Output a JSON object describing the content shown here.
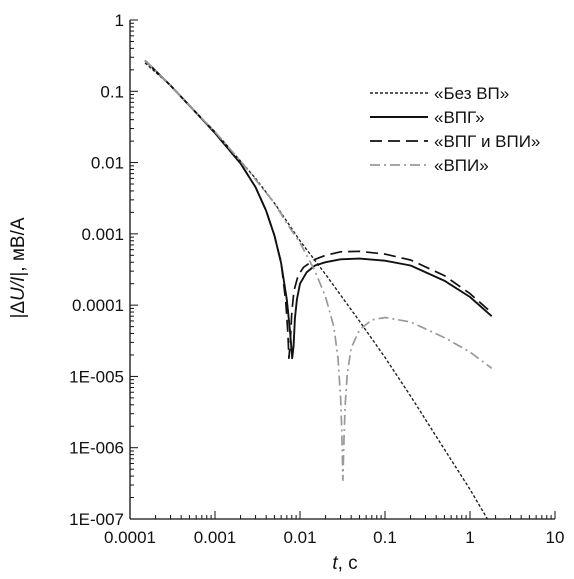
{
  "chart_data": {
    "type": "line",
    "xscale": "log",
    "yscale": "log",
    "xlim": [
      0.0001,
      10
    ],
    "ylim": [
      1e-07,
      1
    ],
    "xlabel_italic": "t",
    "xlabel_rest": ", с",
    "ylabel_left": "|Δ",
    "ylabel_italic": "U/I",
    "ylabel_right": "|, мВ/А",
    "x_ticks": [
      {
        "value": 0.0001,
        "label": "0.0001"
      },
      {
        "value": 0.001,
        "label": "0.001"
      },
      {
        "value": 0.01,
        "label": "0.01"
      },
      {
        "value": 0.1,
        "label": "0.1"
      },
      {
        "value": 1,
        "label": "1"
      },
      {
        "value": 10,
        "label": "10"
      }
    ],
    "y_ticks": [
      {
        "value": 1,
        "label": "1"
      },
      {
        "value": 0.1,
        "label": "0.1"
      },
      {
        "value": 0.01,
        "label": "0.01"
      },
      {
        "value": 0.001,
        "label": "0.001"
      },
      {
        "value": 0.0001,
        "label": "0.0001"
      },
      {
        "value": 1e-05,
        "label": "1E-005"
      },
      {
        "value": 1e-06,
        "label": "1E-006"
      },
      {
        "value": 1e-07,
        "label": "1E-007"
      }
    ],
    "grid": false,
    "legend_position": "top-right",
    "series": [
      {
        "name": "«Без ВП»",
        "color": "#222222",
        "dash": "3,2",
        "width": 1.4,
        "x": [
          0.00015,
          0.0003,
          0.0006,
          0.001,
          0.002,
          0.003,
          0.005,
          0.007,
          0.01,
          0.02,
          0.05,
          0.1,
          0.2,
          0.5,
          1,
          1.6
        ],
        "y": [
          0.25,
          0.12,
          0.05,
          0.027,
          0.0105,
          0.006,
          0.0027,
          0.0015,
          0.0008,
          0.00027,
          6e-05,
          1.85e-05,
          5.3e-06,
          9.5e-07,
          2.6e-07,
          1e-07
        ]
      },
      {
        "name": "«ВПГ»",
        "color": "#111111",
        "dash": "",
        "width": 1.9,
        "x": [
          0.00015,
          0.0003,
          0.0006,
          0.001,
          0.002,
          0.003,
          0.004,
          0.005,
          0.006,
          0.007,
          0.0076,
          0.0081,
          0.0084,
          0.0087,
          0.0092,
          0.01,
          0.012,
          0.015,
          0.02,
          0.03,
          0.05,
          0.1,
          0.2,
          0.5,
          1,
          1.8
        ],
        "y": [
          0.27,
          0.12,
          0.05,
          0.026,
          0.0097,
          0.0045,
          0.0021,
          0.00095,
          0.00039,
          0.00012,
          4.5e-05,
          1.8e-05,
          2.7e-05,
          6.5e-05,
          0.00012,
          0.0002,
          0.00029,
          0.00036,
          0.0004,
          0.00044,
          0.00045,
          0.00042,
          0.00036,
          0.00022,
          0.00013,
          7e-05
        ]
      },
      {
        "name": "«ВПГ и ВПИ»",
        "color": "#111111",
        "dash": "12,6",
        "width": 1.7,
        "x": [
          0.00015,
          0.0003,
          0.0006,
          0.001,
          0.002,
          0.003,
          0.004,
          0.005,
          0.006,
          0.0068,
          0.0072,
          0.0074,
          0.0077,
          0.008,
          0.0085,
          0.0095,
          0.011,
          0.015,
          0.02,
          0.03,
          0.05,
          0.1,
          0.2,
          0.5,
          1,
          1.8
        ],
        "y": [
          0.27,
          0.12,
          0.05,
          0.026,
          0.0097,
          0.0045,
          0.0021,
          0.00095,
          0.0004,
          0.00011,
          4e-05,
          1.8e-05,
          3.2e-05,
          8e-05,
          0.00016,
          0.00026,
          0.00034,
          0.00044,
          0.0005,
          0.00056,
          0.00057,
          0.00052,
          0.00043,
          0.00026,
          0.000145,
          7.8e-05
        ]
      },
      {
        "name": "«ВПИ»",
        "color": "#999999",
        "dash": "10,4,2,4",
        "width": 1.7,
        "x": [
          0.00015,
          0.0003,
          0.0006,
          0.001,
          0.002,
          0.005,
          0.007,
          0.01,
          0.015,
          0.02,
          0.025,
          0.028,
          0.03,
          0.031,
          0.032,
          0.033,
          0.034,
          0.036,
          0.04,
          0.05,
          0.07,
          0.1,
          0.2,
          0.5,
          1,
          1.8
        ],
        "y": [
          0.27,
          0.12,
          0.05,
          0.027,
          0.0105,
          0.0027,
          0.0014,
          0.00075,
          0.0003,
          0.00013,
          5e-05,
          1.8e-05,
          5e-06,
          1.7e-06,
          3.5e-07,
          1.5e-06,
          4e-06,
          1.1e-05,
          2.5e-05,
          4.5e-05,
          6.2e-05,
          6.7e-05,
          5.8e-05,
          3.5e-05,
          2.2e-05,
          1.3e-05
        ]
      }
    ]
  }
}
